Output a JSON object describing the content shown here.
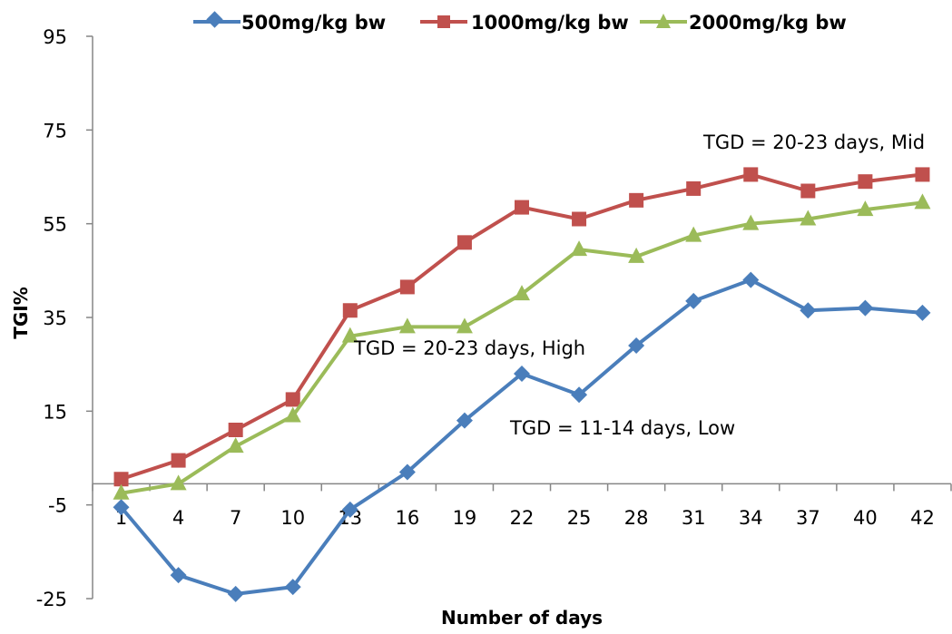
{
  "chart_data": {
    "type": "line",
    "xlabel": "Number of days",
    "ylabel": "TGI%",
    "categories": [
      "1",
      "4",
      "7",
      "10",
      "13",
      "16",
      "19",
      "22",
      "25",
      "28",
      "31",
      "34",
      "37",
      "40",
      "42"
    ],
    "ylim": [
      -25,
      95
    ],
    "yticks": [
      -25,
      -5,
      15,
      35,
      55,
      75,
      95
    ],
    "x_axis_crosses_at": -0.5,
    "grid": false,
    "legend": "top",
    "series": [
      {
        "name": "500mg/kg bw",
        "color": "#4a7ebb",
        "marker": "diamond",
        "values": [
          -5.5,
          -20,
          -24,
          -22.5,
          -6,
          2,
          13,
          23,
          18.5,
          29,
          38.5,
          43,
          36.5,
          37,
          36
        ]
      },
      {
        "name": "1000mg/kg bw",
        "color": "#c0504d",
        "marker": "square",
        "values": [
          0.5,
          4.5,
          11,
          17.5,
          36.5,
          41.5,
          51,
          58.5,
          56,
          60,
          62.5,
          65.5,
          62,
          64,
          65.5
        ]
      },
      {
        "name": "2000mg/kg bw",
        "color": "#9bbb59",
        "marker": "triangle",
        "values": [
          -2.5,
          -0.5,
          7.5,
          14,
          31,
          33,
          33,
          40,
          49.5,
          48,
          52.5,
          55,
          56,
          58,
          59.5
        ]
      }
    ],
    "annotations": [
      {
        "text": "TGD = 20-23 days, Mid",
        "near_series": "1000mg/kg bw"
      },
      {
        "text": "TGD = 20-23 days, High",
        "near_series": "2000mg/kg bw"
      },
      {
        "text": "TGD = 11-14 days, Low",
        "near_series": "500mg/kg bw"
      }
    ]
  }
}
